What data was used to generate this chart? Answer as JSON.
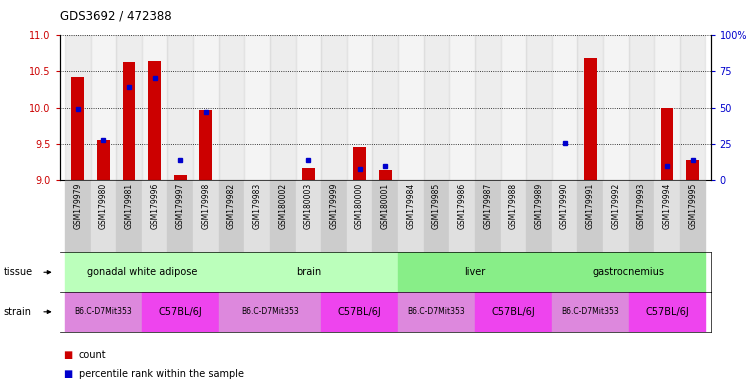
{
  "title": "GDS3692 / 472388",
  "samples": [
    "GSM179979",
    "GSM179980",
    "GSM179981",
    "GSM179996",
    "GSM179997",
    "GSM179998",
    "GSM179982",
    "GSM179983",
    "GSM180002",
    "GSM180003",
    "GSM179999",
    "GSM180000",
    "GSM180001",
    "GSM179984",
    "GSM179985",
    "GSM179986",
    "GSM179987",
    "GSM179988",
    "GSM179989",
    "GSM179990",
    "GSM179991",
    "GSM179992",
    "GSM179993",
    "GSM179994",
    "GSM179995"
  ],
  "count_values": [
    10.42,
    9.56,
    10.62,
    10.64,
    9.07,
    9.96,
    9.0,
    9.0,
    9.0,
    9.17,
    9.0,
    9.46,
    9.15,
    9.0,
    9.0,
    9.0,
    9.0,
    9.0,
    9.0,
    9.0,
    10.68,
    9.0,
    9.0,
    10.0,
    9.28
  ],
  "percentile_values": [
    49,
    28,
    64,
    70,
    14,
    47,
    null,
    null,
    null,
    14,
    null,
    8,
    10,
    null,
    null,
    null,
    null,
    null,
    null,
    26,
    null,
    null,
    null,
    10,
    14
  ],
  "ylim_left": [
    9,
    11
  ],
  "ylim_right": [
    0,
    100
  ],
  "yticks_left": [
    9,
    9.5,
    10,
    10.5,
    11
  ],
  "yticks_right": [
    0,
    25,
    50,
    75,
    100
  ],
  "tissue_groups": [
    {
      "label": "gonadal white adipose",
      "start": 0,
      "end": 5,
      "color": "#bbffbb"
    },
    {
      "label": "brain",
      "start": 6,
      "end": 12,
      "color": "#bbffbb"
    },
    {
      "label": "liver",
      "start": 13,
      "end": 18,
      "color": "#88ee88"
    },
    {
      "label": "gastrocnemius",
      "start": 19,
      "end": 24,
      "color": "#88ee88"
    }
  ],
  "strain_groups": [
    {
      "label": "B6.C-D7Mit353",
      "start": 0,
      "end": 2,
      "color": "#dd88dd"
    },
    {
      "label": "C57BL/6J",
      "start": 3,
      "end": 5,
      "color": "#ee44ee"
    },
    {
      "label": "B6.C-D7Mit353",
      "start": 6,
      "end": 9,
      "color": "#dd88dd"
    },
    {
      "label": "C57BL/6J",
      "start": 10,
      "end": 12,
      "color": "#ee44ee"
    },
    {
      "label": "B6.C-D7Mit353",
      "start": 13,
      "end": 15,
      "color": "#dd88dd"
    },
    {
      "label": "C57BL/6J",
      "start": 16,
      "end": 18,
      "color": "#ee44ee"
    },
    {
      "label": "B6.C-D7Mit353",
      "start": 19,
      "end": 21,
      "color": "#dd88dd"
    },
    {
      "label": "C57BL/6J",
      "start": 22,
      "end": 24,
      "color": "#ee44ee"
    }
  ],
  "bar_color": "#cc0000",
  "percentile_color": "#0000cc",
  "base_value": 9.0,
  "tick_label_color_left": "#cc0000",
  "tick_label_color_right": "#0000cc",
  "sample_bg_even": "#cccccc",
  "sample_bg_odd": "#e0e0e0"
}
